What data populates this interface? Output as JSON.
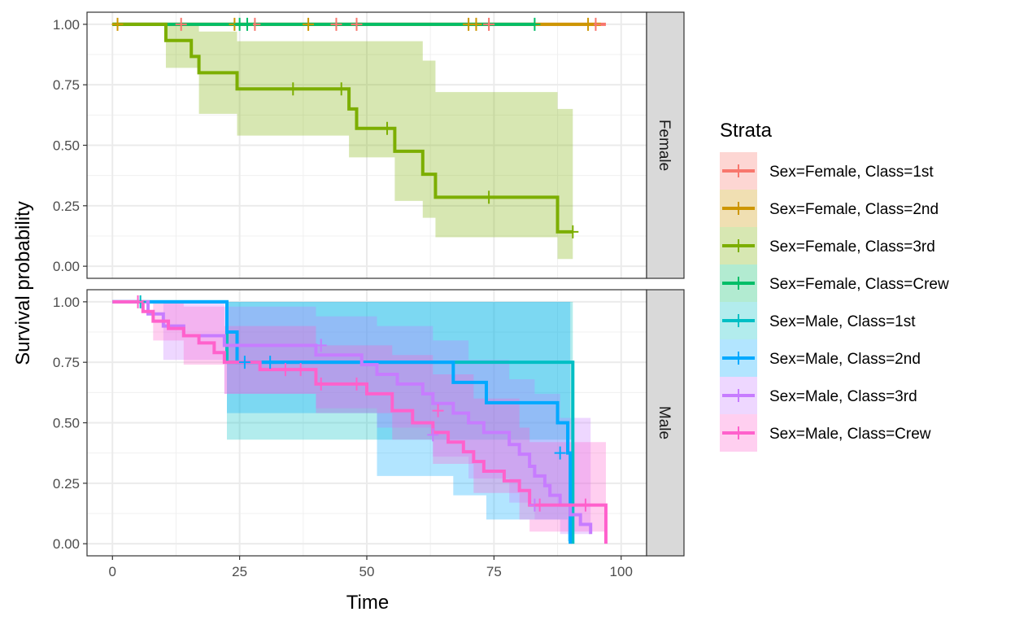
{
  "chart_data": {
    "type": "line",
    "subtype": "kaplan-meier step curves with confidence bands, faceted",
    "xlabel": "Time",
    "ylabel": "Survival probability",
    "xlim": [
      -5,
      105
    ],
    "ylim": [
      -0.05,
      1.05
    ],
    "xticks": [
      "0",
      "25",
      "50",
      "75",
      "100"
    ],
    "yticks": [
      "0.00",
      "0.25",
      "0.50",
      "0.75",
      "1.00"
    ],
    "grid": true,
    "legend": {
      "title": "Strata",
      "position": "right",
      "entries": [
        {
          "label": "Sex=Female, Class=1st",
          "color": "#F8766D"
        },
        {
          "label": "Sex=Female, Class=2nd",
          "color": "#CD9600"
        },
        {
          "label": "Sex=Female, Class=3rd",
          "color": "#7CAE00"
        },
        {
          "label": "Sex=Female, Class=Crew",
          "color": "#00BE67"
        },
        {
          "label": "Sex=Male, Class=1st",
          "color": "#00BFC4"
        },
        {
          "label": "Sex=Male, Class=2nd",
          "color": "#00A9FF"
        },
        {
          "label": "Sex=Male, Class=3rd",
          "color": "#C77CFF"
        },
        {
          "label": "Sex=Male, Class=Crew",
          "color": "#FF61CC"
        }
      ]
    },
    "panels": [
      {
        "strip": "Female",
        "series": [
          {
            "name": "Sex=Female, Class=1st",
            "color": "#F8766D",
            "steps": [
              [
                0,
                1
              ],
              [
                97,
                1
              ]
            ],
            "band": null,
            "censor": [
              [
                13.5,
                1
              ],
              [
                28,
                1
              ],
              [
                44,
                1
              ],
              [
                48,
                1
              ],
              [
                74,
                1
              ],
              [
                95,
                1
              ]
            ]
          },
          {
            "name": "Sex=Female, Class=2nd",
            "color": "#CD9600",
            "steps": [
              [
                0,
                1
              ],
              [
                96,
                1
              ]
            ],
            "band": null,
            "censor": [
              [
                1,
                1
              ],
              [
                24,
                1
              ],
              [
                38.5,
                1
              ],
              [
                70,
                1
              ],
              [
                71.5,
                1
              ],
              [
                93.5,
                1
              ]
            ]
          },
          {
            "name": "Sex=Female, Class=Crew",
            "color": "#00BE67",
            "steps": [
              [
                0,
                1
              ],
              [
                83,
                1
              ]
            ],
            "band": null,
            "censor": [
              [
                25,
                1
              ],
              [
                26.5,
                1
              ],
              [
                83,
                1
              ]
            ]
          },
          {
            "name": "Sex=Female, Class=3rd",
            "color": "#7CAE00",
            "steps": [
              [
                0,
                1
              ],
              [
                10.5,
                0.933
              ],
              [
                15.5,
                0.867
              ],
              [
                17,
                0.8
              ],
              [
                24.5,
                0.733
              ],
              [
                46.5,
                0.65
              ],
              [
                48,
                0.57
              ],
              [
                55.5,
                0.475
              ],
              [
                61,
                0.38
              ],
              [
                63.5,
                0.285
              ],
              [
                87.5,
                0.142
              ],
              [
                90.5,
                0.142
              ]
            ],
            "band": [
              [
                0,
                1,
                1
              ],
              [
                10.5,
                0.82,
                1
              ],
              [
                17,
                0.63,
                0.97
              ],
              [
                24.5,
                0.54,
                0.93
              ],
              [
                46.5,
                0.45,
                0.93
              ],
              [
                55.5,
                0.27,
                0.93
              ],
              [
                61,
                0.2,
                0.85
              ],
              [
                63.5,
                0.12,
                0.72
              ],
              [
                87.5,
                0.03,
                0.65
              ],
              [
                90.5,
                0.03,
                0.65
              ]
            ],
            "censor": [
              [
                35.5,
                0.733
              ],
              [
                45,
                0.733
              ],
              [
                54,
                0.57
              ],
              [
                74,
                0.285
              ],
              [
                90.5,
                0.142
              ]
            ]
          }
        ]
      },
      {
        "strip": "Male",
        "series": [
          {
            "name": "Sex=Male, Class=1st",
            "color": "#00BFC4",
            "steps": [
              [
                0,
                1
              ],
              [
                22.5,
                0.75
              ],
              [
                90.5,
                0
              ],
              [
                90.5,
                0
              ]
            ],
            "band": [
              [
                0,
                1,
                1
              ],
              [
                22.5,
                0.43,
                1
              ],
              [
                90.5,
                0.43,
                1
              ]
            ],
            "censor": [
              [
                5.5,
                1
              ]
            ]
          },
          {
            "name": "Sex=Male, Class=2nd",
            "color": "#00A9FF",
            "steps": [
              [
                0,
                1
              ],
              [
                22.5,
                0.875
              ],
              [
                24.5,
                0.75
              ],
              [
                67,
                0.667
              ],
              [
                73.5,
                0.583
              ],
              [
                87.5,
                0.5
              ],
              [
                89.5,
                0.375
              ],
              [
                90,
                0
              ],
              [
                90,
                0
              ]
            ],
            "band": [
              [
                0,
                1,
                1
              ],
              [
                22.5,
                0.54,
                1
              ],
              [
                52,
                0.28,
                1
              ],
              [
                67,
                0.2,
                1
              ],
              [
                73.5,
                0.1,
                1
              ],
              [
                89.5,
                0.01,
                1
              ],
              [
                90,
                0.01,
                1
              ]
            ],
            "censor": [
              [
                26,
                0.75
              ],
              [
                31,
                0.75
              ],
              [
                88,
                0.375
              ]
            ]
          },
          {
            "name": "Sex=Male, Class=3rd",
            "color": "#C77CFF",
            "steps": [
              [
                0,
                1
              ],
              [
                7,
                0.95
              ],
              [
                10,
                0.9
              ],
              [
                14,
                0.86
              ],
              [
                22,
                0.82
              ],
              [
                40,
                0.78
              ],
              [
                49,
                0.74
              ],
              [
                52,
                0.7
              ],
              [
                56,
                0.66
              ],
              [
                61,
                0.62
              ],
              [
                63,
                0.58
              ],
              [
                67,
                0.54
              ],
              [
                70,
                0.5
              ],
              [
                73,
                0.46
              ],
              [
                78,
                0.41
              ],
              [
                80,
                0.37
              ],
              [
                82,
                0.32
              ],
              [
                83,
                0.28
              ],
              [
                85,
                0.24
              ],
              [
                86,
                0.2
              ],
              [
                88,
                0.16
              ],
              [
                90,
                0.12
              ],
              [
                92,
                0.08
              ],
              [
                94,
                0.04
              ],
              [
                94,
                0.04
              ]
            ],
            "band": [
              [
                0,
                1,
                1
              ],
              [
                10,
                0.76,
                1
              ],
              [
                22,
                0.62,
                0.98
              ],
              [
                40,
                0.56,
                0.94
              ],
              [
                52,
                0.48,
                0.9
              ],
              [
                63,
                0.36,
                0.84
              ],
              [
                70,
                0.27,
                0.76
              ],
              [
                78,
                0.17,
                0.68
              ],
              [
                83,
                0.1,
                0.62
              ],
              [
                88,
                0.04,
                0.52
              ],
              [
                94,
                0.01,
                0.4
              ]
            ],
            "censor": [
              [
                41,
                0.82
              ],
              [
                63,
                0.45
              ],
              [
                83,
                0.16
              ]
            ]
          },
          {
            "name": "Sex=Male, Class=Crew",
            "color": "#FF61CC",
            "steps": [
              [
                0,
                1
              ],
              [
                6,
                0.96
              ],
              [
                8,
                0.92
              ],
              [
                11,
                0.89
              ],
              [
                14,
                0.86
              ],
              [
                17,
                0.83
              ],
              [
                20,
                0.79
              ],
              [
                22,
                0.75
              ],
              [
                29,
                0.72
              ],
              [
                40,
                0.66
              ],
              [
                50,
                0.62
              ],
              [
                55,
                0.55
              ],
              [
                59,
                0.5
              ],
              [
                63,
                0.46
              ],
              [
                66,
                0.42
              ],
              [
                69,
                0.38
              ],
              [
                71,
                0.34
              ],
              [
                73,
                0.3
              ],
              [
                77,
                0.26
              ],
              [
                80,
                0.22
              ],
              [
                82,
                0.16
              ],
              [
                97,
                0.16
              ],
              [
                97,
                0.0
              ],
              [
                97,
                0.0
              ]
            ],
            "band": [
              [
                0,
                1,
                1
              ],
              [
                8,
                0.84,
                1
              ],
              [
                14,
                0.74,
                0.98
              ],
              [
                22,
                0.62,
                0.9
              ],
              [
                40,
                0.54,
                0.82
              ],
              [
                55,
                0.43,
                0.78
              ],
              [
                63,
                0.33,
                0.7
              ],
              [
                71,
                0.21,
                0.6
              ],
              [
                80,
                0.1,
                0.48
              ],
              [
                82,
                0.05,
                0.42
              ],
              [
                97,
                0.05,
                0.42
              ]
            ],
            "censor": [
              [
                5,
                1
              ],
              [
                34,
                0.72
              ],
              [
                37,
                0.72
              ],
              [
                41,
                0.66
              ],
              [
                48,
                0.66
              ],
              [
                64,
                0.55
              ],
              [
                84,
                0.16
              ],
              [
                93,
                0.16
              ]
            ]
          }
        ]
      }
    ]
  }
}
